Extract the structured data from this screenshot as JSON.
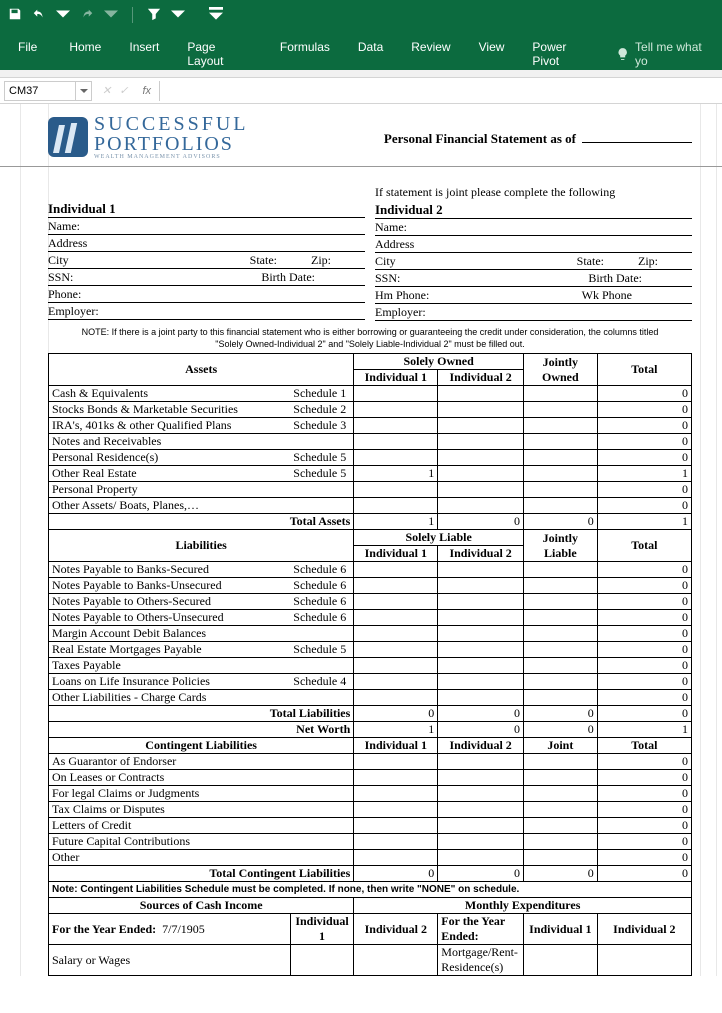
{
  "app": {
    "cell_ref": "CM37",
    "ribbon_tabs": [
      "File",
      "Home",
      "Insert",
      "Page Layout",
      "Formulas",
      "Data",
      "Review",
      "View",
      "Power Pivot"
    ],
    "tell_me": "Tell me what yo"
  },
  "logo": {
    "line1": "SUCCESSFUL",
    "line2": "PORTFOLIOS",
    "line3": "WEALTH MANAGEMENT ADVISORS"
  },
  "title": "Personal Financial Statement as of",
  "joint_note": "If statement is joint please complete the following",
  "ind1": {
    "head": "Individual 1",
    "name": "Name:",
    "addr": "Address",
    "city": "City",
    "state": "State:",
    "zip": "Zip:",
    "ssn": "SSN:",
    "bdate": "Birth Date:",
    "phone": "Phone:",
    "emp": "Employer:"
  },
  "ind2": {
    "head": "Individual 2",
    "name": "Name:",
    "addr": "Address",
    "city": "City",
    "state": "State:",
    "zip": "Zip:",
    "ssn": "SSN:",
    "bdate": "Birth Date:",
    "hmphone": "Hm Phone:",
    "wkphone": "Wk Phone",
    "emp": "Employer:"
  },
  "note_line1": "NOTE: If there is a joint party to this financial statement who is either borrowing or guaranteeing  the credit under consideration, the columns titled",
  "note_line2": "\"Solely Owned-Individual 2\" and \"Solely Liable-Individual 2\" must be filled out.",
  "assets": {
    "head": "Assets",
    "solely": "Solely Owned",
    "i1": "Individual 1",
    "i2": "Individual 2",
    "jointly": "Jointly Owned",
    "total": "Total",
    "rows": [
      {
        "label": "Cash & Equivalents",
        "sch": "Schedule 1",
        "i1": "",
        "i2": "",
        "j": "",
        "t": "0"
      },
      {
        "label": "Stocks Bonds & Marketable Securities",
        "sch": "Schedule 2",
        "i1": "",
        "i2": "",
        "j": "",
        "t": "0"
      },
      {
        "label": "IRA's, 401ks & other Qualified Plans",
        "sch": "Schedule 3",
        "i1": "",
        "i2": "",
        "j": "",
        "t": "0"
      },
      {
        "label": "Notes and  Receivables",
        "sch": "",
        "i1": "",
        "i2": "",
        "j": "",
        "t": "0"
      },
      {
        "label": "Personal Residence(s)",
        "sch": "Schedule 5",
        "i1": "",
        "i2": "",
        "j": "",
        "t": "0"
      },
      {
        "label": "Other Real Estate",
        "sch": "Schedule 5",
        "i1": "1",
        "i2": "",
        "j": "",
        "t": "1"
      },
      {
        "label": "Personal Property",
        "sch": "",
        "i1": "",
        "i2": "",
        "j": "",
        "t": "0"
      },
      {
        "label": "Other Assets/ Boats, Planes,…",
        "sch": "",
        "i1": "",
        "i2": "",
        "j": "",
        "t": "0"
      }
    ],
    "total_label": "Total Assets",
    "total_vals": {
      "i1": "1",
      "i2": "0",
      "j": "0",
      "t": "1"
    }
  },
  "liab": {
    "head": "Liabilities",
    "solely": "Solely Liable",
    "i1": "Individual 1",
    "i2": "Individual 2",
    "jointly": "Jointly Liable",
    "total": "Total",
    "rows": [
      {
        "label": "Notes Payable to Banks-Secured",
        "sch": "Schedule 6",
        "t": "0"
      },
      {
        "label": "Notes Payable to Banks-Unsecured",
        "sch": "Schedule 6",
        "t": "0"
      },
      {
        "label": "Notes Payable to Others-Secured",
        "sch": "Schedule 6",
        "t": "0"
      },
      {
        "label": "Notes Payable to Others-Unsecured",
        "sch": "Schedule 6",
        "t": "0"
      },
      {
        "label": "Margin Account Debit Balances",
        "sch": "",
        "t": "0"
      },
      {
        "label": "Real Estate Mortgages Payable",
        "sch": "Schedule 5",
        "t": "0"
      },
      {
        "label": "Taxes Payable",
        "sch": "",
        "t": "0"
      },
      {
        "label": "Loans on Life Insurance Policies",
        "sch": "Schedule 4",
        "t": "0"
      },
      {
        "label": "Other Liabilities - Charge Cards",
        "sch": "",
        "t": "0"
      }
    ],
    "total_label": "Total Liabilities",
    "total_vals": {
      "i1": "0",
      "i2": "0",
      "j": "0",
      "t": "0"
    },
    "networth_label": "Net Worth",
    "networth_vals": {
      "i1": "1",
      "i2": "0",
      "j": "0",
      "t": "1"
    }
  },
  "cont": {
    "head": "Contingent Liabilities",
    "i1": "Individual 1",
    "i2": "Individual 2",
    "joint": "Joint",
    "total": "Total",
    "rows": [
      {
        "label": "As Guarantor of Endorser",
        "t": "0"
      },
      {
        "label": "On Leases or Contracts",
        "t": "0"
      },
      {
        "label": "For legal Claims or Judgments",
        "t": "0"
      },
      {
        "label": "Tax Claims or Disputes",
        "t": "0"
      },
      {
        "label": "Letters of Credit",
        "t": "0"
      },
      {
        "label": "Future Capital Contributions",
        "t": "0"
      },
      {
        "label": "Other",
        "t": "0"
      }
    ],
    "total_label": "Total Contingent Liabilities",
    "total_vals": {
      "i1": "0",
      "i2": "0",
      "j": "0",
      "t": "0"
    }
  },
  "cont_note": "Note: Contingent Liabilities Schedule must be completed. If none, then write \"NONE\" on schedule.",
  "bottom": {
    "src_head": "Sources of Cash Income",
    "exp_head": "Monthly Expenditures",
    "for_year": "For the Year Ended:",
    "date": "7/7/1905",
    "i1": "Individual 1",
    "i2": "Individual 2",
    "salary": "Salary or Wages",
    "mort": "Mortgage/Rent-Residence(s)"
  }
}
